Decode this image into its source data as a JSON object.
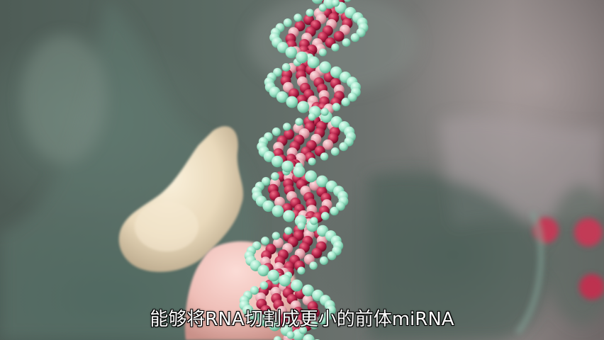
{
  "video": {
    "subtitle": "能够将RNA切割成更小的前体miRNA"
  },
  "colors": {
    "helix_backbone": "#9fe3c8",
    "helix_bases_dark": "#b8264a",
    "helix_bases_light": "#e6a7b0",
    "protein_cream": "#efe2c7",
    "protein_pink": "#f2c6c1"
  }
}
